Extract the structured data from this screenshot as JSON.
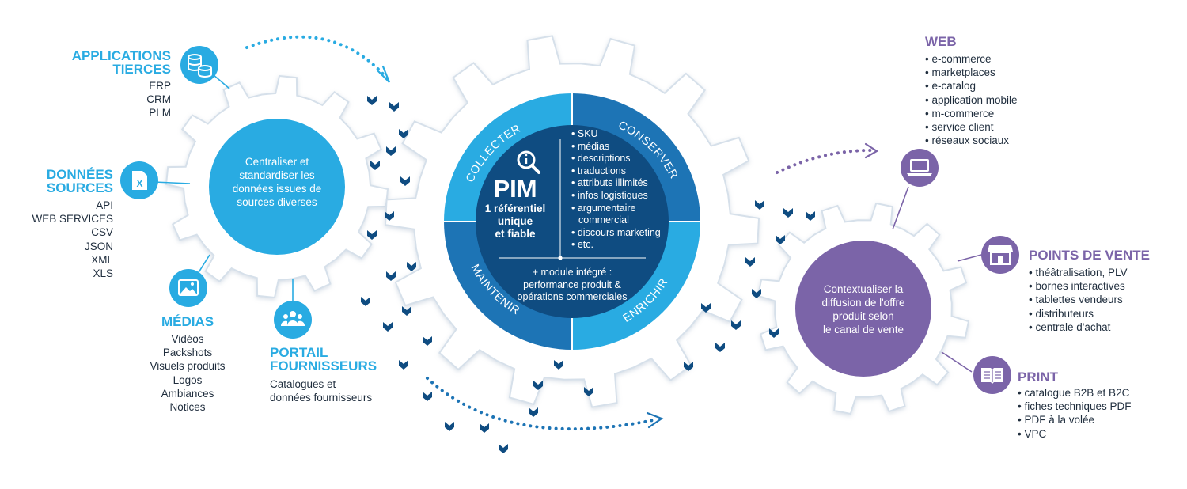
{
  "colors": {
    "blue": "#29abe2",
    "navy": "#0f4c81",
    "mid_blue": "#1d74b5",
    "purple": "#7b64a8",
    "gear_stroke": "#d6e0ea"
  },
  "left": {
    "center_text": [
      "Centraliser et",
      "standardiser les",
      "données issues de",
      "sources diverses"
    ],
    "applications": {
      "title": [
        "APPLICATIONS",
        "TIERCES"
      ],
      "items": [
        "ERP",
        "CRM",
        "PLM"
      ],
      "icon": "database-icon"
    },
    "donnees": {
      "title": [
        "DONNÉES",
        "SOURCES"
      ],
      "items": [
        "API",
        "WEB SERVICES",
        "CSV",
        "JSON",
        "XML",
        "XLS"
      ],
      "icon": "excel-file-icon"
    },
    "medias": {
      "title": "MÉDIAS",
      "items": [
        "Vidéos",
        "Packshots",
        "Visuels produits",
        "Logos",
        "Ambiances",
        "Notices"
      ],
      "icon": "image-icon"
    },
    "portail": {
      "title": [
        "PORTAIL",
        "FOURNISSEURS"
      ],
      "items": [
        "Catalogues et",
        "données fournisseurs"
      ],
      "icon": "users-icon"
    }
  },
  "center": {
    "ring_labels": [
      "COLLECTER",
      "CONSERVER",
      "MAINTENIR",
      "ENRICHIR"
    ],
    "pim_title": "PIM",
    "pim_subtitle": [
      "1 référentiel",
      "unique",
      "et fiable"
    ],
    "list": [
      "SKU",
      "médias",
      "descriptions",
      "traductions",
      "attributs illimités",
      "infos logistiques",
      "argumentaire",
      "commercial",
      "discours marketing",
      "etc."
    ],
    "module": [
      "+ module intégré :",
      "performance produit &",
      "opérations commerciales"
    ]
  },
  "right": {
    "center_text": [
      "Contextualiser la",
      "diffusion de l'offre",
      "produit selon",
      "le canal de vente"
    ],
    "web": {
      "title": "WEB",
      "items": [
        "e-commerce",
        "marketplaces",
        "e-catalog",
        "application mobile",
        "m-commerce",
        "service client",
        "réseaux sociaux"
      ],
      "icon": "laptop-icon"
    },
    "points": {
      "title": "POINTS DE VENTE",
      "items": [
        "théâtralisation, PLV",
        "bornes interactives",
        "tablettes vendeurs",
        "distributeurs",
        "centrale d'achat"
      ],
      "icon": "store-icon"
    },
    "print": {
      "title": "PRINT",
      "items": [
        "catalogue B2B et B2C",
        "fiches techniques PDF",
        "PDF à la volée",
        "VPC"
      ],
      "icon": "book-icon"
    }
  }
}
